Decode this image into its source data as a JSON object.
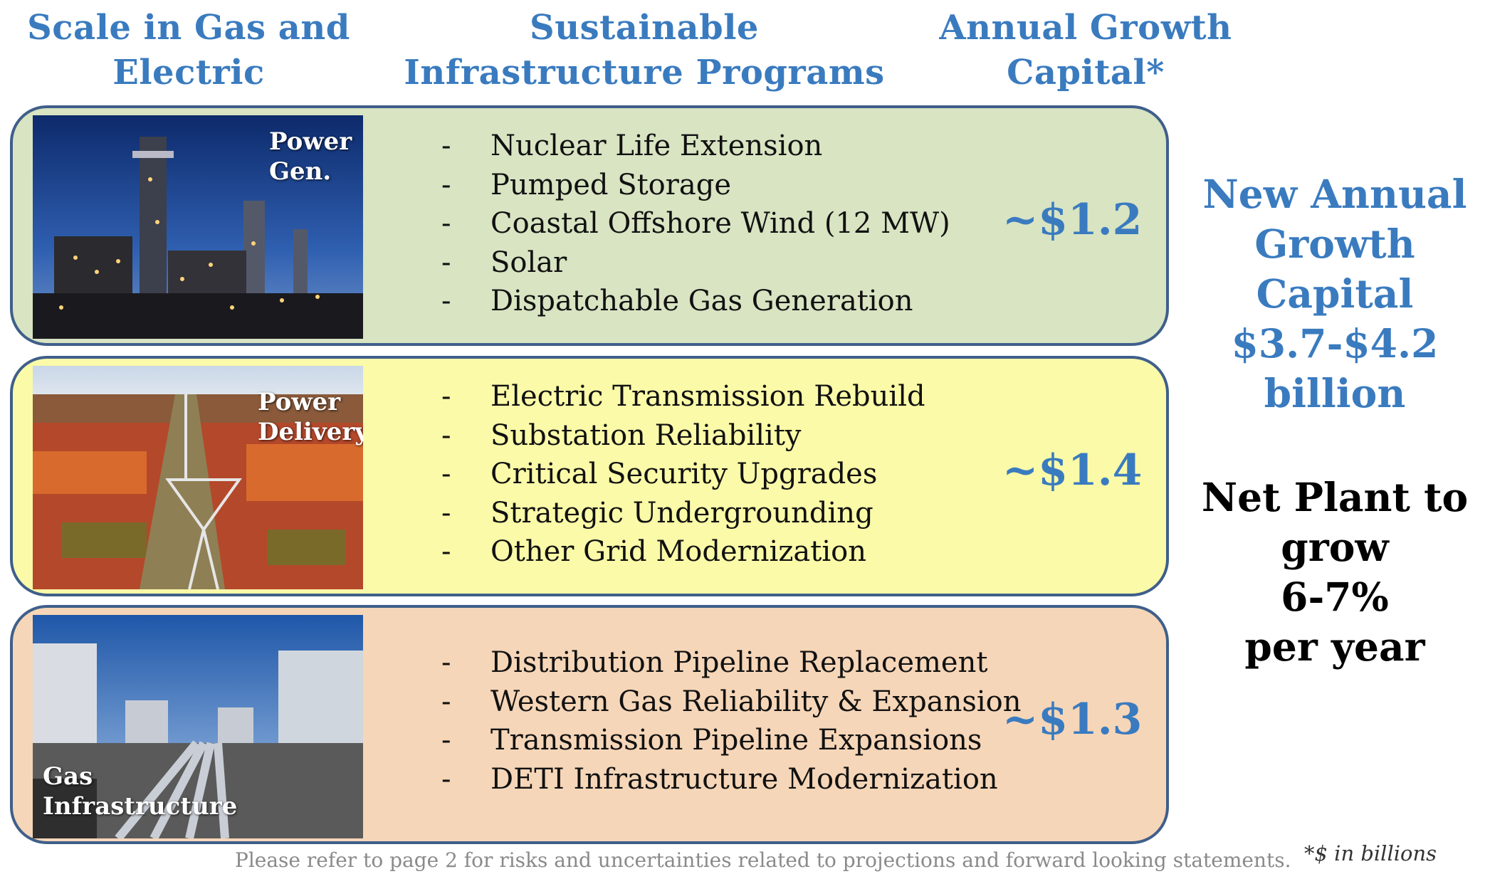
{
  "headers": {
    "scale": "Scale in Gas and Electric",
    "programs": "Sustainable Infrastructure Programs",
    "capital": "Annual Growth Capital*"
  },
  "rows": [
    {
      "photo_label": "Power Gen.",
      "items": [
        "Nuclear Life Extension",
        "Pumped Storage",
        "Coastal Offshore Wind (12 MW)",
        "Solar",
        "Dispatchable Gas Generation"
      ],
      "amount": "~$1.2",
      "color": "#d8e4c2"
    },
    {
      "photo_label": "Power Delivery",
      "items": [
        "Electric Transmission Rebuild",
        "Substation Reliability",
        "Critical Security Upgrades",
        "Strategic Undergrounding",
        "Other Grid Modernization"
      ],
      "amount": "~$1.4",
      "color": "#fafaa8"
    },
    {
      "photo_label": "Gas Infrastructure",
      "items": [
        "Distribution Pipeline Replacement",
        "Western Gas Reliability & Expansion",
        "Transmission Pipeline Expansions",
        "DETI Infrastructure Modernization"
      ],
      "amount": "~$1.3",
      "color": "#f6d6b8"
    }
  ],
  "summary": {
    "new_capital": [
      "New Annual",
      "Growth Capital",
      "$3.7-$4.2",
      "billion"
    ],
    "net_plant": [
      "Net Plant to",
      "grow",
      "6-7%",
      "per year"
    ]
  },
  "footnote": "Please refer to page 2 for risks and uncertainties related to projections and forward looking statements.",
  "units_note": "*$ in billions",
  "colors": {
    "accent": "#3a7bbf",
    "border": "#3f5f8a"
  },
  "photos": [
    "power-plant-night-photo",
    "transmission-line-forest-photo",
    "gas-pipeline-tanks-photo"
  ]
}
